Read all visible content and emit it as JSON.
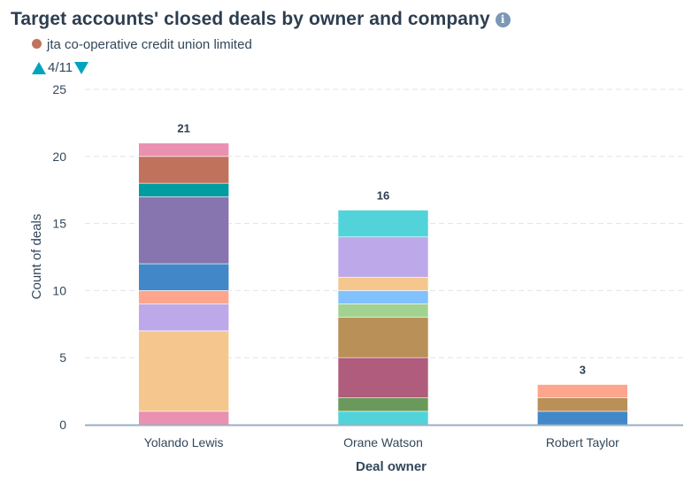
{
  "header": {
    "title": "Target accounts' closed deals by owner and company",
    "info_icon": "info-icon"
  },
  "legend": {
    "visible_item": {
      "label": "jta co-operative credit union limited",
      "color": "#c0725c"
    },
    "pager": {
      "text": "4/11",
      "prev_icon": "triangle-up-icon",
      "next_icon": "triangle-down-icon",
      "color": "#00a4bd"
    }
  },
  "chart_data": {
    "type": "bar",
    "stacked": true,
    "title": "Target accounts' closed deals by owner and company",
    "xlabel": "Deal owner",
    "ylabel": "Count of deals",
    "ylim": [
      0,
      25
    ],
    "yticks": [
      0,
      5,
      10,
      15,
      20,
      25
    ],
    "grid": true,
    "legend_position": "top-left",
    "categories": [
      "Yolando Lewis",
      "Orane Watson",
      "Robert Taylor"
    ],
    "totals": [
      21,
      16,
      3
    ],
    "stacks": [
      {
        "category": "Yolando Lewis",
        "segments": [
          {
            "value": 1,
            "color": "#ea90b1"
          },
          {
            "value": 6,
            "color": "#f5c78e"
          },
          {
            "value": 2,
            "color": "#bda9ea"
          },
          {
            "value": 1,
            "color": "#fea58e"
          },
          {
            "value": 2,
            "color": "#4288c8"
          },
          {
            "value": 5,
            "color": "#8775b0"
          },
          {
            "value": 1,
            "color": "#009ca0"
          },
          {
            "value": 2,
            "color": "#c0725c"
          },
          {
            "value": 1,
            "color": "#ea90b1"
          }
        ]
      },
      {
        "category": "Orane Watson",
        "segments": [
          {
            "value": 1,
            "color": "#51d3d9"
          },
          {
            "value": 1,
            "color": "#6a9a5b"
          },
          {
            "value": 3,
            "color": "#b05c7c"
          },
          {
            "value": 3,
            "color": "#b89058"
          },
          {
            "value": 1,
            "color": "#a2d28f"
          },
          {
            "value": 1,
            "color": "#81c1fd"
          },
          {
            "value": 1,
            "color": "#f5c78e"
          },
          {
            "value": 3,
            "color": "#bda9ea"
          },
          {
            "value": 2,
            "color": "#51d3d9"
          }
        ]
      },
      {
        "category": "Robert Taylor",
        "segments": [
          {
            "value": 1,
            "color": "#4288c8"
          },
          {
            "value": 1,
            "color": "#b89058"
          },
          {
            "value": 1,
            "color": "#fea58e"
          }
        ]
      }
    ]
  }
}
